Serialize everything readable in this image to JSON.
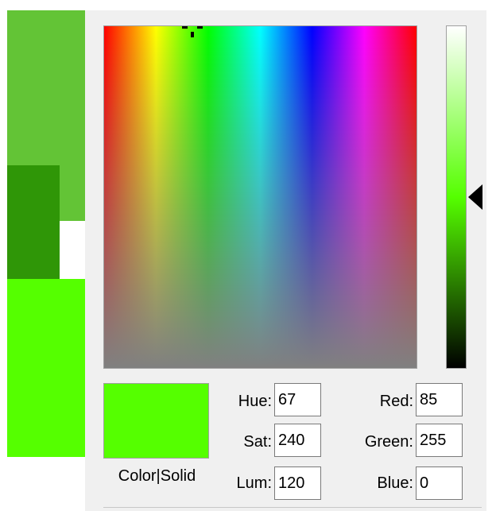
{
  "window": {
    "title": ""
  },
  "colors": {
    "swatch_top": "#63c436",
    "swatch_dark": "#2f9607",
    "swatch_bottom": "#55ff00",
    "current_color": "#55ff00",
    "dialog_bg": "#f0f0f0"
  },
  "preview": {
    "label": "Color|Solid"
  },
  "fields": {
    "hue": {
      "label": "Hue:",
      "value": "67"
    },
    "sat": {
      "label": "Sat:",
      "value": "240"
    },
    "lum": {
      "label": "Lum:",
      "value": "120"
    },
    "red": {
      "label": "Red:",
      "value": "85"
    },
    "green": {
      "label": "Green:",
      "value": "255"
    },
    "blue": {
      "label": "Blue:",
      "value": "0"
    }
  },
  "selection": {
    "hue": 67,
    "sat": 240,
    "lum": 120
  }
}
